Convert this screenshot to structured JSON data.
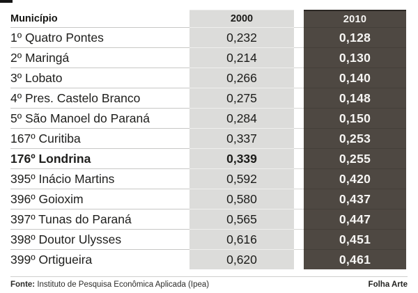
{
  "colors": {
    "col2000_bg": "#dcdcda",
    "col2010_bg": "#4e4842",
    "page_bg": "#ffffff"
  },
  "table": {
    "header": {
      "municipio": "Município",
      "y2000": "2000",
      "y2010": "2010"
    },
    "rows": [
      {
        "municipio": "1º Quatro Pontes",
        "v2000": "0,232",
        "v2010": "0,128"
      },
      {
        "municipio": "2º Maringá",
        "v2000": "0,214",
        "v2010": "0,130"
      },
      {
        "municipio": "3º Lobato",
        "v2000": "0,266",
        "v2010": "0,140"
      },
      {
        "municipio": "4º Pres. Castelo Branco",
        "v2000": "0,275",
        "v2010": "0,148"
      },
      {
        "municipio": "5º São Manoel do Paraná",
        "v2000": "0,284",
        "v2010": "0,150"
      },
      {
        "municipio": "167º Curitiba",
        "v2000": "0,337",
        "v2010": "0,253"
      },
      {
        "municipio": "176º Londrina",
        "v2000": "0,339",
        "v2010": "0,255"
      },
      {
        "municipio": "395º Inácio Martins",
        "v2000": "0,592",
        "v2010": "0,420"
      },
      {
        "municipio": "396º Goioxim",
        "v2000": "0,580",
        "v2010": "0,437"
      },
      {
        "municipio": "397º Tunas do Paraná",
        "v2000": "0,565",
        "v2010": "0,447"
      },
      {
        "municipio": "398º Doutor Ulysses",
        "v2000": "0,616",
        "v2010": "0,451"
      },
      {
        "municipio": "399º Ortigueira",
        "v2000": "0,620",
        "v2010": "0,461"
      }
    ]
  },
  "footer": {
    "source_label": "Fonte:",
    "source_text": "Instituto de Pesquisa Econômica Aplicada (Ipea)",
    "credit": "Folha Arte"
  },
  "chart_data": {
    "type": "table",
    "columns": [
      "Município",
      "2000",
      "2010"
    ],
    "rows": [
      [
        "1º Quatro Pontes",
        0.232,
        0.128
      ],
      [
        "2º Maringá",
        0.214,
        0.13
      ],
      [
        "3º Lobato",
        0.266,
        0.14
      ],
      [
        "4º Pres. Castelo Branco",
        0.275,
        0.148
      ],
      [
        "5º São Manoel do Paraná",
        0.284,
        0.15
      ],
      [
        "167º Curitiba",
        0.337,
        0.253
      ],
      [
        "176º Londrina",
        0.339,
        0.255
      ],
      [
        "395º Inácio Martins",
        0.592,
        0.42
      ],
      [
        "396º Goioxim",
        0.58,
        0.437
      ],
      [
        "397º Tunas do Paraná",
        0.565,
        0.447
      ],
      [
        "398º Doutor Ulysses",
        0.616,
        0.451
      ],
      [
        "399º Ortigueira",
        0.62,
        0.461
      ]
    ],
    "highlighted_row": "176º Londrina",
    "source": "Fonte: Instituto de Pesquisa Econômica Aplicada (Ipea)",
    "credit": "Folha Arte"
  }
}
